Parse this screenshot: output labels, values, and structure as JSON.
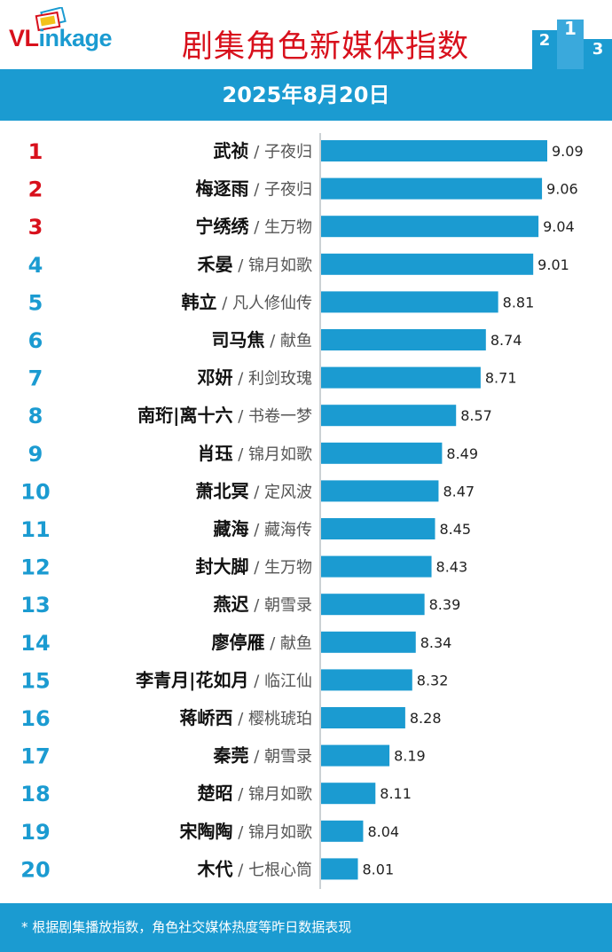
{
  "brand": {
    "logo_prefix": "VL",
    "logo_suffix": "inkage"
  },
  "header": {
    "title": "剧集角色新媒体指数",
    "date": "2025年8月20日"
  },
  "footer": {
    "note": "* 根据剧集播放指数，角色社交媒体热度等昨日数据表现"
  },
  "colors": {
    "accent": "#1b9bd1",
    "rank_top3": "#d8101c",
    "rank_other": "#1b9bd1",
    "title_red": "#d8101c"
  },
  "chart_data": {
    "type": "bar",
    "orientation": "horizontal",
    "ranks": [
      "1",
      "2",
      "3",
      "4",
      "5",
      "6",
      "7",
      "8",
      "9",
      "10",
      "11",
      "12",
      "13",
      "14",
      "15",
      "16",
      "17",
      "18",
      "19",
      "20"
    ],
    "characters": [
      "武祯",
      "梅逐雨",
      "宁绣绣",
      "禾晏",
      "韩立",
      "司马焦",
      "邓妍",
      "南珩|离十六",
      "肖珏",
      "萧北冥",
      "藏海",
      "封大脚",
      "燕迟",
      "廖停雁",
      "李青月|花如月",
      "蒋峤西",
      "秦莞",
      "楚昭",
      "宋陶陶",
      "木代"
    ],
    "separator": "/",
    "dramas": [
      "子夜归",
      "子夜归",
      "生万物",
      "锦月如歌",
      "凡人修仙传",
      "献鱼",
      "利剑玫瑰",
      "书卷一梦",
      "锦月如歌",
      "定风波",
      "藏海传",
      "生万物",
      "朝雪录",
      "献鱼",
      "临江仙",
      "樱桃琥珀",
      "朝雪录",
      "锦月如歌",
      "锦月如歌",
      "七根心筒"
    ],
    "values": [
      9.09,
      9.06,
      9.04,
      9.01,
      8.81,
      8.74,
      8.71,
      8.57,
      8.49,
      8.47,
      8.45,
      8.43,
      8.39,
      8.34,
      8.32,
      8.28,
      8.19,
      8.11,
      8.04,
      8.01
    ],
    "value_labels": [
      "9.09",
      "9.06",
      "9.04",
      "9.01",
      "8.81",
      "8.74",
      "8.71",
      "8.57",
      "8.49",
      "8.47",
      "8.45",
      "8.43",
      "8.39",
      "8.34",
      "8.32",
      "8.28",
      "8.19",
      "8.11",
      "8.04",
      "8.01"
    ],
    "xlim": [
      7.8,
      9.09
    ]
  }
}
